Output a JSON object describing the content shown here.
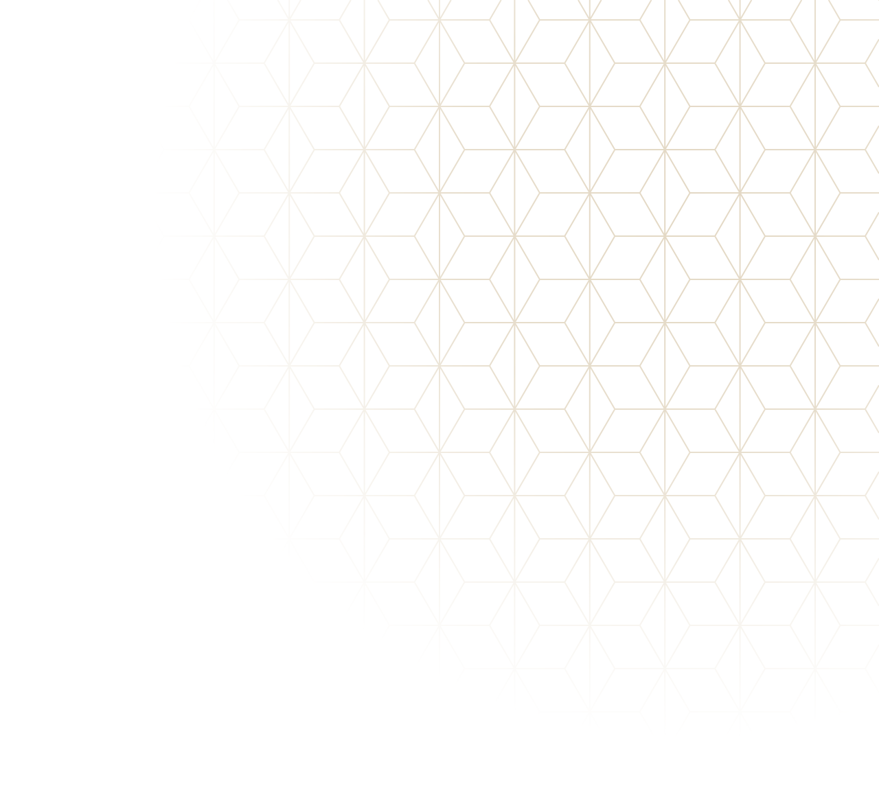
{
  "background": {
    "pattern": "geometric-star-lattice",
    "line_color": "#e3d8c4",
    "page_color": "#ffffff"
  }
}
